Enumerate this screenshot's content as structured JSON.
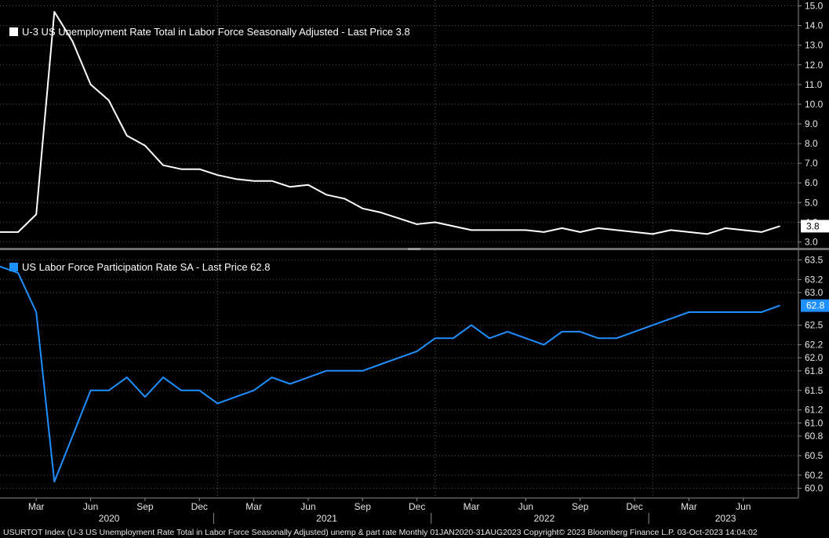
{
  "chart_data": [
    {
      "type": "line",
      "legend": "U-3 US Unemployment Rate Total in Labor Force Seasonally Adjusted - Last Price 3.8",
      "last_value_label": "3.8",
      "color": "#ffffff",
      "ylim": [
        2.7,
        15.3
      ],
      "yticks": [
        "3.0",
        "4.0",
        "5.0",
        "6.0",
        "7.0",
        "8.0",
        "9.0",
        "10.0",
        "11.0",
        "12.0",
        "13.0",
        "14.0",
        "15.0"
      ],
      "series": [
        {
          "x": [
            "2020-01",
            "2020-02",
            "2020-03",
            "2020-04",
            "2020-05",
            "2020-06",
            "2020-07",
            "2020-08",
            "2020-09",
            "2020-10",
            "2020-11",
            "2020-12",
            "2021-01",
            "2021-02",
            "2021-03",
            "2021-04",
            "2021-05",
            "2021-06",
            "2021-07",
            "2021-08",
            "2021-09",
            "2021-10",
            "2021-11",
            "2021-12",
            "2022-01",
            "2022-02",
            "2022-03",
            "2022-04",
            "2022-05",
            "2022-06",
            "2022-07",
            "2022-08",
            "2022-09",
            "2022-10",
            "2022-11",
            "2022-12",
            "2023-01",
            "2023-02",
            "2023-03",
            "2023-04",
            "2023-05",
            "2023-06",
            "2023-07",
            "2023-08"
          ],
          "values": [
            3.5,
            3.5,
            4.4,
            14.7,
            13.2,
            11.0,
            10.2,
            8.4,
            7.9,
            6.9,
            6.7,
            6.7,
            6.4,
            6.2,
            6.1,
            6.1,
            5.8,
            5.9,
            5.4,
            5.2,
            4.7,
            4.5,
            4.2,
            3.9,
            4.0,
            3.8,
            3.6,
            3.6,
            3.6,
            3.6,
            3.5,
            3.7,
            3.5,
            3.7,
            3.6,
            3.5,
            3.4,
            3.6,
            3.5,
            3.4,
            3.7,
            3.6,
            3.5,
            3.8
          ]
        }
      ]
    },
    {
      "type": "line",
      "legend": "US Labor Force Participation Rate SA - Last Price 62.8",
      "last_value_label": "62.8",
      "color": "#1e90ff",
      "ylim": [
        59.85,
        63.65
      ],
      "yticks": [
        "60.0",
        "60.2",
        "60.5",
        "60.8",
        "61.0",
        "61.2",
        "61.5",
        "61.8",
        "62.0",
        "62.2",
        "62.5",
        "63.0",
        "63.2",
        "63.5"
      ],
      "series": [
        {
          "x": [
            "2020-01",
            "2020-02",
            "2020-03",
            "2020-04",
            "2020-05",
            "2020-06",
            "2020-07",
            "2020-08",
            "2020-09",
            "2020-10",
            "2020-11",
            "2020-12",
            "2021-01",
            "2021-02",
            "2021-03",
            "2021-04",
            "2021-05",
            "2021-06",
            "2021-07",
            "2021-08",
            "2021-09",
            "2021-10",
            "2021-11",
            "2021-12",
            "2022-01",
            "2022-02",
            "2022-03",
            "2022-04",
            "2022-05",
            "2022-06",
            "2022-07",
            "2022-08",
            "2022-09",
            "2022-10",
            "2022-11",
            "2022-12",
            "2023-01",
            "2023-02",
            "2023-03",
            "2023-04",
            "2023-05",
            "2023-06",
            "2023-07",
            "2023-08"
          ],
          "values": [
            63.4,
            63.3,
            62.7,
            60.1,
            60.8,
            61.5,
            61.5,
            61.7,
            61.4,
            61.7,
            61.5,
            61.5,
            61.3,
            61.4,
            61.5,
            61.7,
            61.6,
            61.7,
            61.8,
            61.8,
            61.8,
            61.9,
            62.0,
            62.1,
            62.3,
            62.3,
            62.5,
            62.3,
            62.4,
            62.3,
            62.2,
            62.4,
            62.4,
            62.3,
            62.3,
            62.4,
            62.5,
            62.6,
            62.7,
            62.7,
            62.7,
            62.7,
            62.7,
            62.8
          ]
        }
      ]
    }
  ],
  "x_axis": {
    "month_labels": [
      {
        "label": "Mar",
        "x": "2020-03"
      },
      {
        "label": "Jun",
        "x": "2020-06"
      },
      {
        "label": "Sep",
        "x": "2020-09"
      },
      {
        "label": "Dec",
        "x": "2020-12"
      },
      {
        "label": "Mar",
        "x": "2021-03"
      },
      {
        "label": "Jun",
        "x": "2021-06"
      },
      {
        "label": "Sep",
        "x": "2021-09"
      },
      {
        "label": "Dec",
        "x": "2021-12"
      },
      {
        "label": "Mar",
        "x": "2022-03"
      },
      {
        "label": "Jun",
        "x": "2022-06"
      },
      {
        "label": "Sep",
        "x": "2022-09"
      },
      {
        "label": "Dec",
        "x": "2022-12"
      },
      {
        "label": "Mar",
        "x": "2023-03"
      },
      {
        "label": "Jun",
        "x": "2023-06"
      }
    ],
    "year_labels": [
      {
        "label": "2020",
        "x": "2020"
      },
      {
        "label": "2021",
        "x": "2021"
      },
      {
        "label": "2022",
        "x": "2022"
      },
      {
        "label": "2023",
        "x": "2023"
      }
    ]
  },
  "footer": "USURTOT Index (U-3 US Unemployment Rate Total in Labor Force Seasonally Adjusted) unemp & part rate  Monthly 01JAN2020-31AUG2023  Copyright© 2023 Bloomberg Finance L.P.  03-Oct-2023 14:04:02",
  "colors": {
    "background": "#000000",
    "grid": "#5a5a5a",
    "separator": "#6e6e6e"
  }
}
